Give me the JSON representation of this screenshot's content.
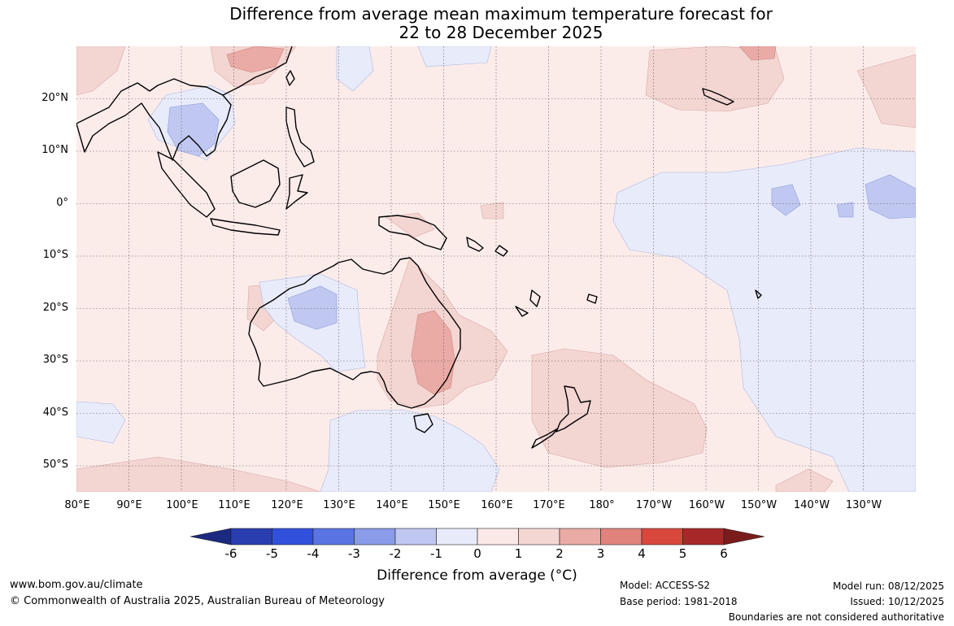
{
  "title": {
    "line1": "Difference from average mean maximum temperature forecast for",
    "line2": "22 to 28 December 2025"
  },
  "lat_labels": [
    "20°N",
    "10°N",
    "0°",
    "10°S",
    "20°S",
    "30°S",
    "40°S",
    "50°S"
  ],
  "lon_labels": [
    "80°E",
    "90°E",
    "100°E",
    "110°E",
    "120°E",
    "130°E",
    "140°E",
    "150°E",
    "160°E",
    "170°E",
    "180°",
    "170°W",
    "160°W",
    "150°W",
    "140°W",
    "130°W"
  ],
  "colorbar": {
    "ticks": [
      "-6",
      "-5",
      "-4",
      "-3",
      "-2",
      "-1",
      "0",
      "1",
      "2",
      "3",
      "4",
      "5",
      "6"
    ],
    "colors": [
      "#1b2a80",
      "#2a3eb0",
      "#3150dc",
      "#5a74e4",
      "#8a9be8",
      "#c0c8f2",
      "#e8ebfa",
      "#fbe9e8",
      "#f4d6d3",
      "#eaaaa5",
      "#e0837c",
      "#d8483c",
      "#a8282a",
      "#7a1c1c"
    ],
    "label": "Difference from average (°C)"
  },
  "footer": {
    "url": "www.bom.gov.au/climate",
    "copyright": "© Commonwealth of Australia 2025, Australian Bureau of Meteorology",
    "model": "Model: ACCESS-S2",
    "base_period": "Base period: 1981-2018",
    "model_run": "Model run: 08/12/2025",
    "issued": "Issued: 10/12/2025",
    "disclaimer": "Boundaries are not considered authoritative"
  },
  "chart_data": {
    "type": "heatmap",
    "title": "Difference from average mean maximum temperature forecast for 22 to 28 December 2025",
    "lon_range": [
      80,
      240
    ],
    "lat_range": [
      -55,
      30
    ],
    "background_anomaly_class": "0 to 1",
    "regions": [
      {
        "name": "Eastern Queensland and New South Wales",
        "anomaly": "2 to 3"
      },
      {
        "name": "Eastern Australia surrounds",
        "anomaly": "1 to 2"
      },
      {
        "name": "Western Australia interior",
        "anomaly": "-2 to -1"
      },
      {
        "name": "Western Australia surrounds",
        "anomaly": "-1 to 0"
      },
      {
        "name": "Thailand / Cambodia",
        "anomaly": "-2 to -1"
      },
      {
        "name": "Southern China coast",
        "anomaly": "2 to 3"
      },
      {
        "name": "Southern Ocean south of Australia",
        "anomaly": "-1 to 0"
      },
      {
        "name": "Central equatorial Pacific",
        "anomaly": "-1 to 0"
      },
      {
        "name": "Central Pacific patches near equator",
        "anomaly": "-2 to -1"
      },
      {
        "name": "Tasman Sea / New Zealand",
        "anomaly": "1 to 2"
      },
      {
        "name": "North Pacific 20-30°N",
        "anomaly": "1 to 2"
      }
    ]
  }
}
